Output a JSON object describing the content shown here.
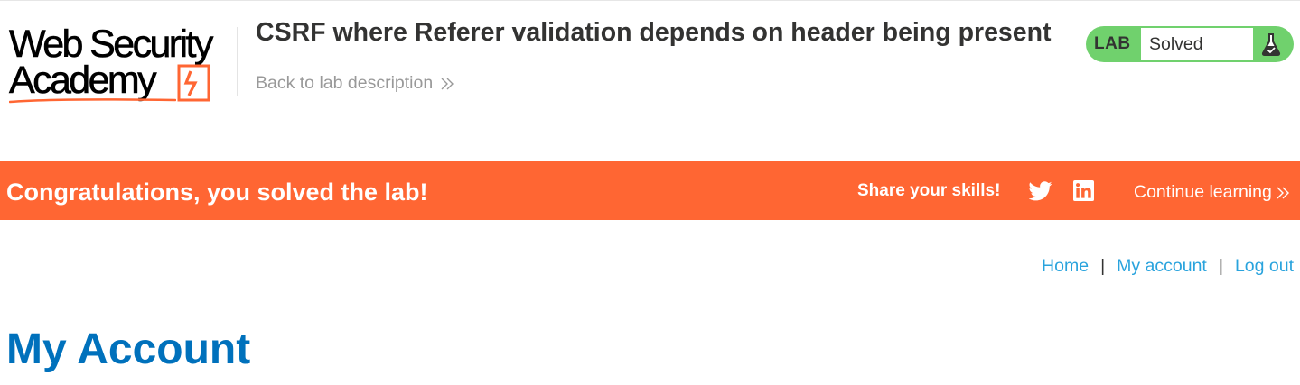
{
  "header": {
    "logo": {
      "line1": "Web Security",
      "line2": "Academy"
    },
    "lab_title": "CSRF where Referer validation depends on header being present",
    "back_link": "Back to lab description",
    "lab_status": {
      "tag": "LAB",
      "state": "Solved"
    }
  },
  "banner": {
    "message": "Congratulations, you solved the lab!",
    "share_label": "Share your skills!",
    "continue_label": "Continue learning"
  },
  "nav": {
    "items": [
      {
        "label": "Home"
      },
      {
        "label": "My account"
      },
      {
        "label": "Log out"
      }
    ],
    "separator": "|"
  },
  "main": {
    "title": "My Account"
  },
  "colors": {
    "accent_orange": "#ff6633",
    "lab_green": "#70d16d",
    "link_blue": "#29a3dd",
    "title_blue": "#0071bc"
  },
  "icons": [
    "bolt-icon",
    "chevron-right-double-icon",
    "flask-icon",
    "twitter-icon",
    "linkedin-icon"
  ]
}
